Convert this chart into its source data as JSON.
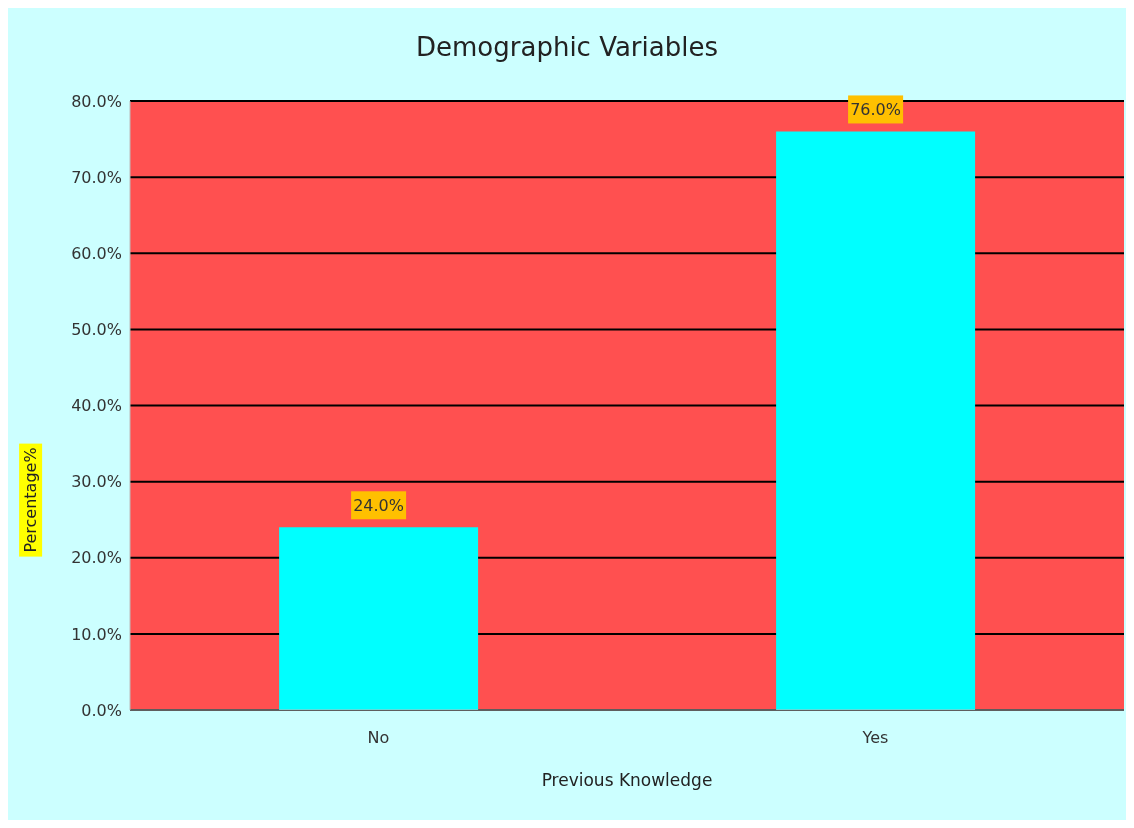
{
  "chart_data": {
    "type": "bar",
    "title": "Demographic Variables",
    "xlabel": "Previous Knowledge",
    "ylabel": "Percentage%",
    "categories": [
      "No",
      "Yes"
    ],
    "values": [
      24,
      76
    ],
    "color": "#00ffff",
    "value_labels": [
      "24.0%",
      "76.0%"
    ],
    "ylim": [
      0,
      80
    ],
    "yticks": [
      {
        "value": 0,
        "label": "0.0%"
      },
      {
        "value": 10,
        "label": "10.0%"
      },
      {
        "value": 20,
        "label": "20.0%"
      },
      {
        "value": 30,
        "label": "30.0%"
      },
      {
        "value": 40,
        "label": "40.0%"
      },
      {
        "value": 50,
        "label": "50.0%"
      },
      {
        "value": 60,
        "label": "60.0%"
      },
      {
        "value": 70,
        "label": "70.0%"
      },
      {
        "value": 80,
        "label": "80.0%"
      }
    ],
    "grid": "y",
    "legend": false
  }
}
